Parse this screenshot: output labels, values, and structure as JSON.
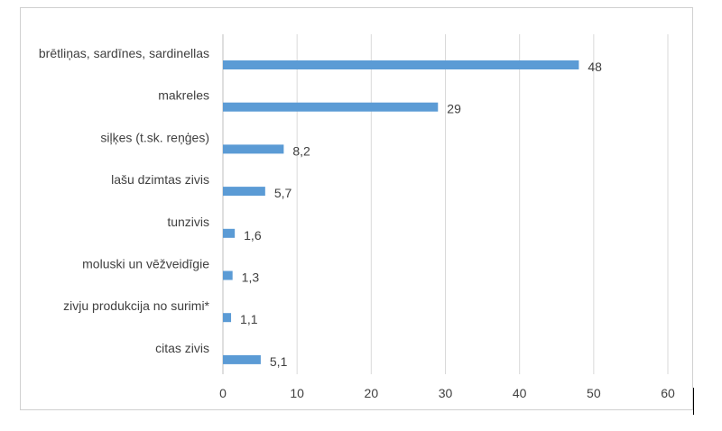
{
  "chart_data": {
    "type": "bar",
    "orientation": "horizontal",
    "categories": [
      "brētliņas, sardīnes, sardinellas",
      "makreles",
      "siļķes (t.sk. reņģes)",
      "lašu dzimtas zivis",
      "tunzivis",
      "moluski un vēžveidīgie",
      "zivju produkcija no surimi*",
      "citas zivis"
    ],
    "values": [
      48,
      29,
      8.2,
      5.7,
      1.6,
      1.3,
      1.1,
      5.1
    ],
    "data_labels": [
      "48",
      "29",
      "8,2",
      "5,7",
      "1,6",
      "1,3",
      "1,1",
      "5,1"
    ],
    "xlim": [
      0,
      60
    ],
    "xticks": [
      0,
      10,
      20,
      30,
      40,
      50,
      60
    ],
    "grid": true,
    "bar_color": "#5b9bd5",
    "grid_color": "#d9d9d9",
    "title": "",
    "xlabel": "",
    "ylabel": ""
  }
}
